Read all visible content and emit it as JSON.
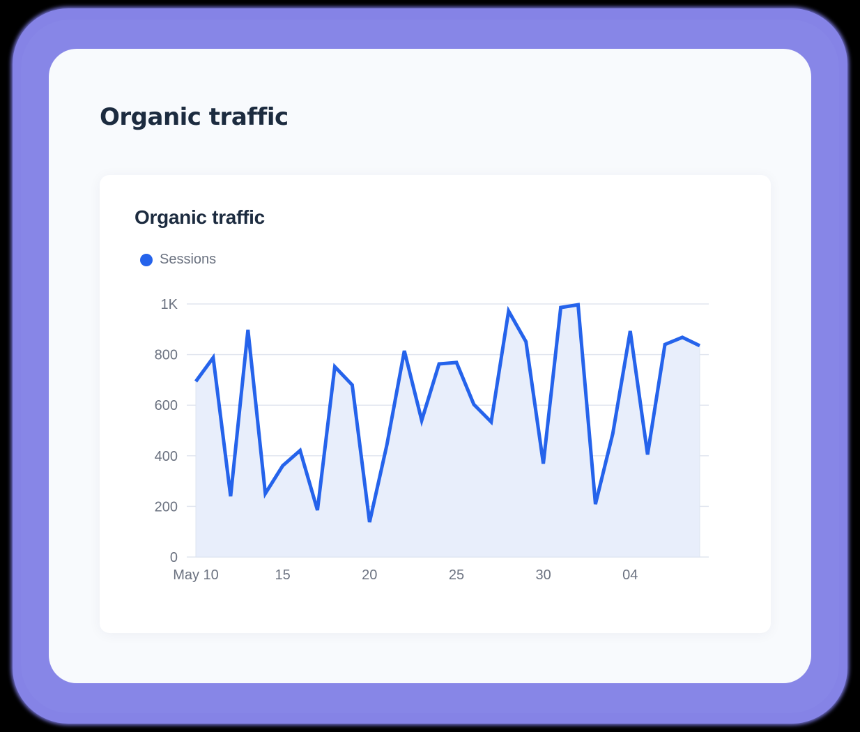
{
  "page": {
    "title": "Organic traffic"
  },
  "card": {
    "title": "Organic traffic",
    "legend": [
      {
        "label": "Sessions",
        "color": "#2563eb"
      }
    ]
  },
  "colors": {
    "frame": "#8583e6",
    "outer_card_bg": "#f8fafd",
    "title_text": "#1c2b3f",
    "line": "#2563eb",
    "area_fill": "#e8eefb",
    "grid": "#e2e6ef",
    "axis_text": "#6b7280"
  },
  "chart_data": {
    "type": "area",
    "title": "Organic traffic",
    "xlabel": "",
    "ylabel": "",
    "legend_position": "top-left",
    "grid": true,
    "ylim": [
      0,
      1000
    ],
    "y_ticks": [
      {
        "value": 0,
        "label": "0"
      },
      {
        "value": 200,
        "label": "200"
      },
      {
        "value": 400,
        "label": "400"
      },
      {
        "value": 600,
        "label": "600"
      },
      {
        "value": 800,
        "label": "800"
      },
      {
        "value": 1000,
        "label": "1K"
      }
    ],
    "x_ticks": [
      {
        "index": 0,
        "label": "May 10"
      },
      {
        "index": 5,
        "label": "15"
      },
      {
        "index": 10,
        "label": "20"
      },
      {
        "index": 15,
        "label": "25"
      },
      {
        "index": 20,
        "label": "30"
      },
      {
        "index": 25,
        "label": "04"
      }
    ],
    "x": [
      "May 10",
      "May 11",
      "May 12",
      "May 13",
      "May 14",
      "May 15",
      "May 16",
      "May 17",
      "May 18",
      "May 19",
      "May 20",
      "May 21",
      "May 22",
      "May 23",
      "May 24",
      "May 25",
      "May 26",
      "May 27",
      "May 28",
      "May 29",
      "May 30",
      "May 31",
      "Jun 01",
      "Jun 02",
      "Jun 03",
      "Jun 04",
      "Jun 05",
      "Jun 06",
      "Jun 07",
      "Jun 08"
    ],
    "series": [
      {
        "name": "Sessions",
        "color": "#2563eb",
        "values": [
          694,
          788,
          240,
          898,
          251,
          361,
          421,
          185,
          752,
          680,
          138,
          444,
          815,
          540,
          763,
          769,
          603,
          534,
          972,
          851,
          369,
          986,
          997,
          209,
          488,
          893,
          405,
          840,
          868,
          835
        ]
      }
    ]
  }
}
